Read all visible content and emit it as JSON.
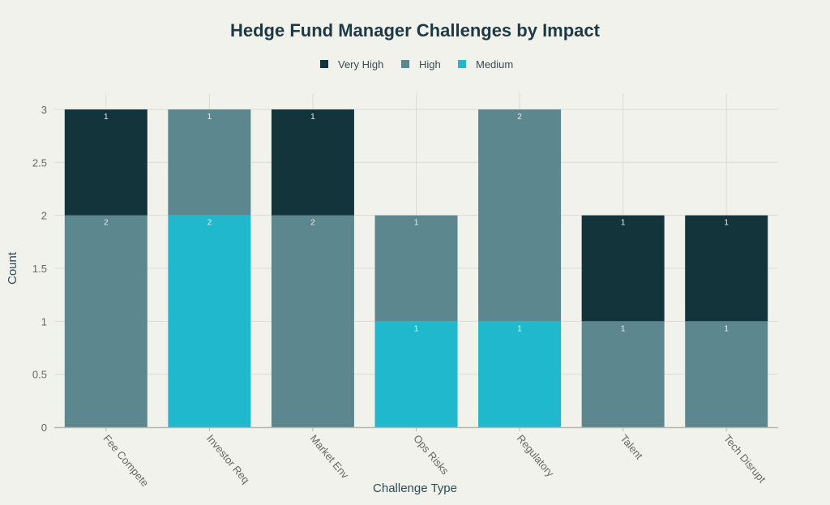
{
  "chart_data": {
    "type": "bar",
    "stacked": true,
    "title": "Hedge Fund Manager Challenges by Impact",
    "xlabel": "Challenge Type",
    "ylabel": "Count",
    "ylim": [
      0,
      3
    ],
    "yticks": [
      "0",
      "0.5",
      "1",
      "1.5",
      "2",
      "2.5",
      "3"
    ],
    "grid": true,
    "legend_position": "top-center",
    "categories": [
      "Fee Compete",
      "Investor Req",
      "Market Env",
      "Ops Risks",
      "Regulatory",
      "Talent",
      "Tech Disrupt"
    ],
    "series": [
      {
        "name": "Medium",
        "color": "#1fb8cd",
        "values": [
          0,
          2,
          0,
          1,
          1,
          0,
          0
        ]
      },
      {
        "name": "High",
        "color": "#5d878f",
        "values": [
          2,
          1,
          2,
          1,
          2,
          1,
          1
        ]
      },
      {
        "name": "Very High",
        "color": "#13343b",
        "values": [
          1,
          0,
          1,
          0,
          0,
          1,
          1
        ]
      }
    ],
    "legend_order": [
      "Very High",
      "High",
      "Medium"
    ]
  }
}
